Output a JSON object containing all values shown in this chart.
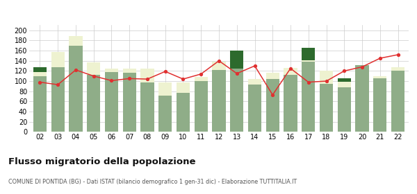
{
  "years": [
    "02",
    "03",
    "04",
    "05",
    "06",
    "07",
    "08",
    "09",
    "10",
    "11",
    "12",
    "13",
    "14",
    "15",
    "16",
    "17",
    "18",
    "19",
    "20",
    "21",
    "22"
  ],
  "iscritti_altri_comuni": [
    110,
    128,
    170,
    112,
    118,
    116,
    98,
    72,
    77,
    100,
    122,
    125,
    93,
    104,
    112,
    138,
    95,
    88,
    132,
    106,
    120
  ],
  "iscritti_estero": [
    8,
    30,
    19,
    25,
    6,
    8,
    27,
    25,
    20,
    8,
    16,
    0,
    11,
    13,
    14,
    3,
    26,
    11,
    0,
    3,
    7
  ],
  "iscritti_altri": [
    10,
    0,
    0,
    0,
    0,
    0,
    0,
    0,
    0,
    0,
    0,
    35,
    0,
    0,
    0,
    25,
    0,
    7,
    0,
    0,
    0
  ],
  "cancellati": [
    98,
    93,
    122,
    110,
    101,
    105,
    104,
    119,
    104,
    114,
    140,
    115,
    130,
    73,
    125,
    98,
    100,
    120,
    128,
    145,
    152
  ],
  "color_altri_comuni": "#8fad88",
  "color_estero": "#eef2d0",
  "color_altri": "#2d6a2d",
  "color_cancellati": "#e03030",
  "title": "Flusso migratorio della popolazione",
  "subtitle": "COMUNE DI PONTIDA (BG) - Dati ISTAT (bilancio demografico 1 gen-31 dic) - Elaborazione TUTTITALIA.IT",
  "ylim": [
    0,
    210
  ],
  "yticks": [
    0,
    20,
    40,
    60,
    80,
    100,
    120,
    140,
    160,
    180,
    200
  ],
  "background_color": "#ffffff",
  "grid_color": "#cccccc"
}
